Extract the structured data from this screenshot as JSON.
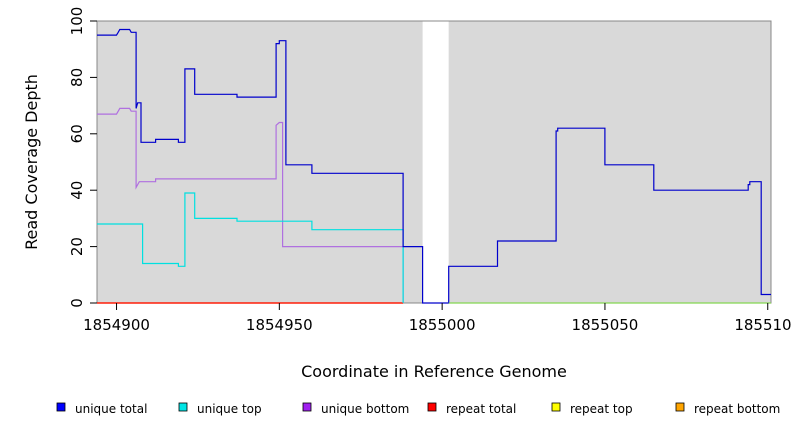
{
  "chart_data": {
    "type": "line",
    "xlabel": "Coordinate in Reference Genome",
    "ylabel": "Read Coverage Depth",
    "xlim": [
      1854894,
      1855101
    ],
    "ylim": [
      0,
      100
    ],
    "x_ticks": [
      1854900,
      1854950,
      1855000,
      1855050,
      1855100
    ],
    "x_tick_labels": [
      "1854900",
      "1854950",
      "1855000",
      "1855050",
      "1855100"
    ],
    "y_ticks": [
      0,
      20,
      40,
      60,
      80,
      100
    ],
    "grid": false,
    "background": "#d9d9d9",
    "gap": {
      "x": [
        1854994,
        1855002
      ],
      "color": "#ffffff"
    },
    "legend_position": "bottom",
    "series": [
      {
        "name": "unique total",
        "color": "#0000ff",
        "line_color": "#0000cc",
        "points": [
          [
            1854894,
            95
          ],
          [
            1854900,
            95
          ],
          [
            1854900.5,
            96
          ],
          [
            1854901,
            97
          ],
          [
            1854904,
            97
          ],
          [
            1854904.5,
            96
          ],
          [
            1854906,
            96
          ],
          [
            1854906,
            69
          ],
          [
            1854906.5,
            71
          ],
          [
            1854907.5,
            71
          ],
          [
            1854907.5,
            57
          ],
          [
            1854912,
            57
          ],
          [
            1854912,
            58
          ],
          [
            1854919,
            58
          ],
          [
            1854919,
            57
          ],
          [
            1854921,
            57
          ],
          [
            1854921,
            83
          ],
          [
            1854924,
            83
          ],
          [
            1854924,
            74
          ],
          [
            1854937,
            74
          ],
          [
            1854937,
            73
          ],
          [
            1854949,
            73
          ],
          [
            1854949,
            92
          ],
          [
            1854950,
            92
          ],
          [
            1854950,
            93
          ],
          [
            1854952,
            93
          ],
          [
            1854952,
            49
          ],
          [
            1854960,
            49
          ],
          [
            1854960,
            46
          ],
          [
            1854988,
            46
          ],
          [
            1854988,
            20
          ],
          [
            1854994,
            20
          ],
          [
            1854994,
            0
          ],
          [
            1855002,
            0
          ],
          [
            1855002,
            13
          ],
          [
            1855017,
            13
          ],
          [
            1855017,
            22
          ],
          [
            1855035,
            22
          ],
          [
            1855035,
            61
          ],
          [
            1855035.5,
            61
          ],
          [
            1855035.5,
            62
          ],
          [
            1855050,
            62
          ],
          [
            1855050,
            49
          ],
          [
            1855065,
            49
          ],
          [
            1855065,
            40
          ],
          [
            1855094,
            40
          ],
          [
            1855094,
            42
          ],
          [
            1855094.5,
            42
          ],
          [
            1855094.5,
            43
          ],
          [
            1855098,
            43
          ],
          [
            1855098,
            3
          ],
          [
            1855101,
            3
          ]
        ]
      },
      {
        "name": "unique top",
        "color": "#00e5e5",
        "line_color": "#00e0e0",
        "points": [
          [
            1854894,
            28
          ],
          [
            1854908,
            28
          ],
          [
            1854908,
            14
          ],
          [
            1854919,
            14
          ],
          [
            1854919,
            13
          ],
          [
            1854921,
            13
          ],
          [
            1854921,
            39
          ],
          [
            1854924,
            39
          ],
          [
            1854924,
            30
          ],
          [
            1854937,
            30
          ],
          [
            1854937,
            29
          ],
          [
            1854960,
            29
          ],
          [
            1854960,
            26
          ],
          [
            1854988,
            26
          ],
          [
            1854988,
            0
          ]
        ]
      },
      {
        "name": "unique bottom",
        "color": "#a020f0",
        "line_color": "#b070e0",
        "points": [
          [
            1854894,
            67
          ],
          [
            1854900,
            67
          ],
          [
            1854900.5,
            68
          ],
          [
            1854901,
            69
          ],
          [
            1854904,
            69
          ],
          [
            1854904.5,
            68
          ],
          [
            1854906,
            68
          ],
          [
            1854906,
            41
          ],
          [
            1854907,
            43
          ],
          [
            1854912,
            43
          ],
          [
            1854912,
            44
          ],
          [
            1854949,
            44
          ],
          [
            1854949,
            63
          ],
          [
            1854950,
            64
          ],
          [
            1854951,
            64
          ],
          [
            1854951,
            20
          ],
          [
            1854988,
            20
          ],
          [
            1854988,
            0
          ]
        ]
      },
      {
        "name": "repeat total",
        "color": "#ff0000",
        "line_color": "#ff0000",
        "points": [
          [
            1854894,
            0
          ],
          [
            1854988,
            0
          ]
        ]
      },
      {
        "name": "repeat top",
        "color": "#ffff00",
        "line_color": "#ffff00",
        "points": [
          [
            1855002,
            0
          ],
          [
            1855101,
            0
          ]
        ]
      },
      {
        "name": "repeat bottom",
        "color": "#ffa500",
        "line_color": "#ffa500",
        "points": [
          [
            1854894,
            0
          ],
          [
            1854988,
            0
          ]
        ]
      }
    ],
    "baseline_after_gap_color": "#66cc66"
  }
}
